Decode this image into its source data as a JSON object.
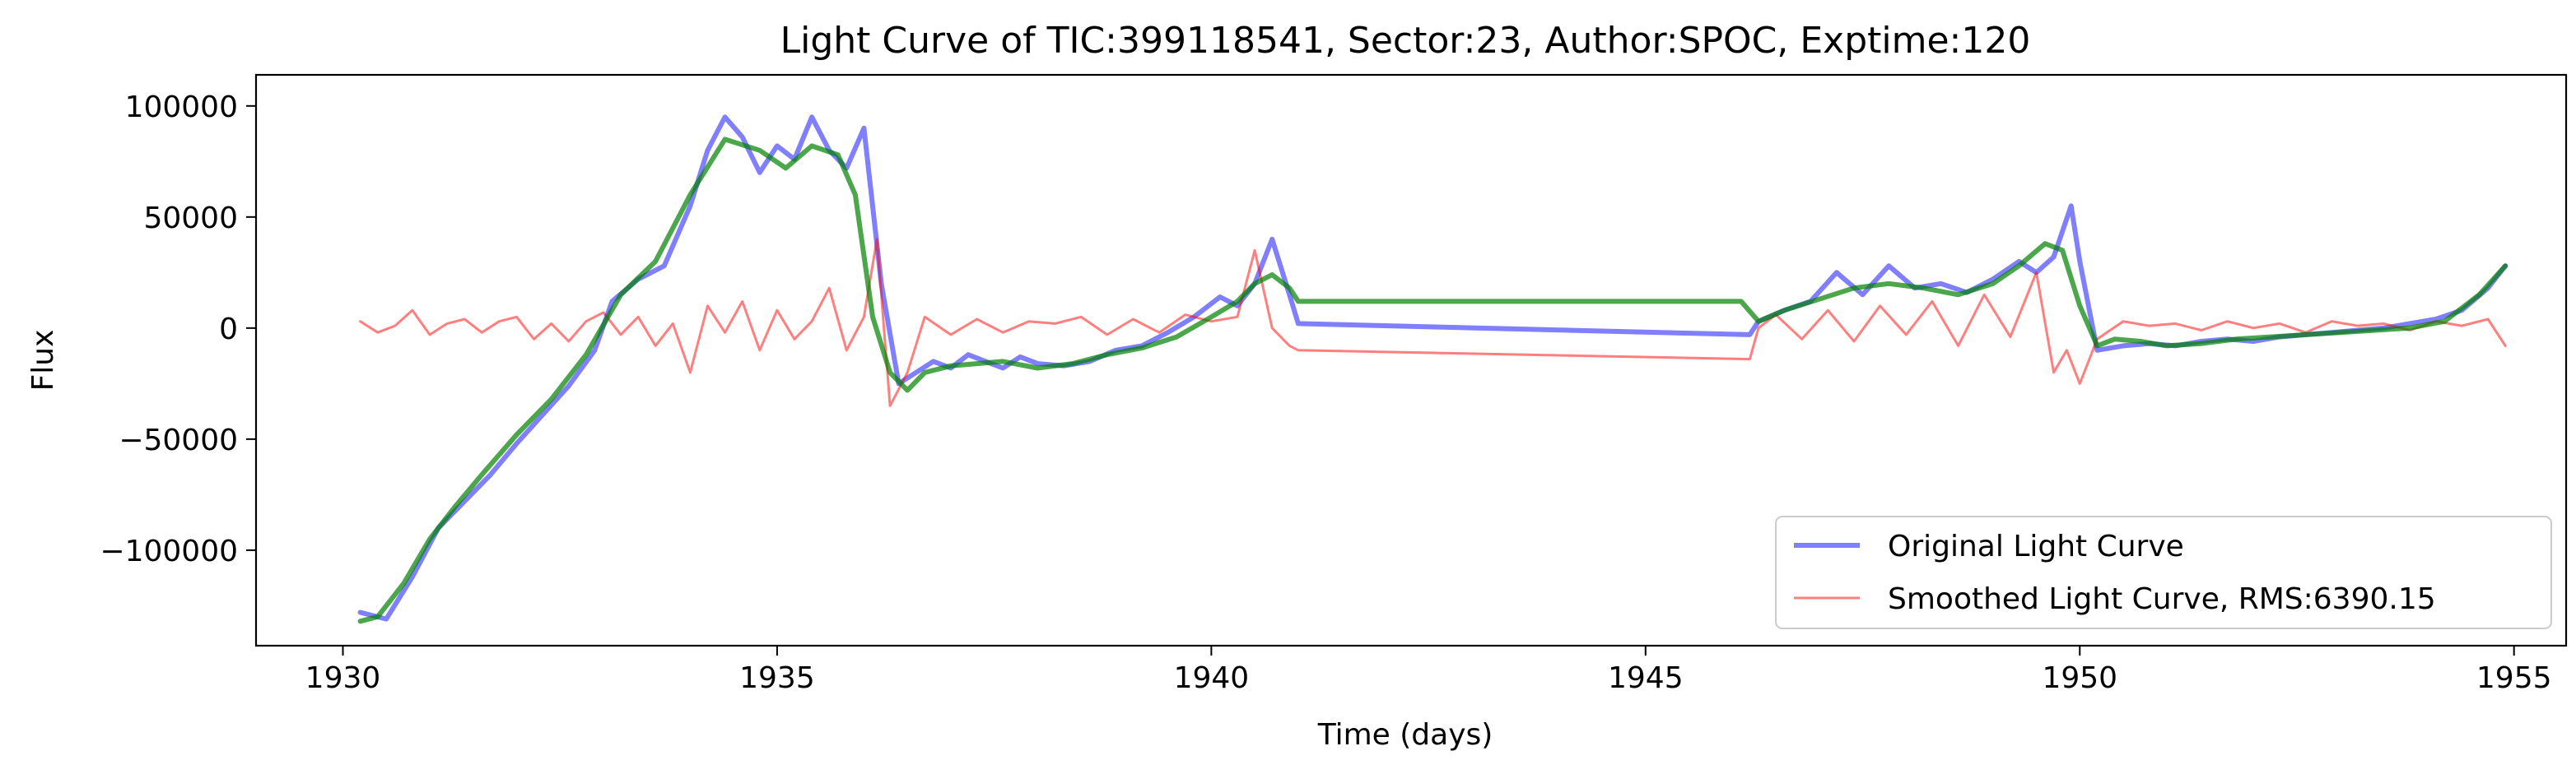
{
  "chart_data": {
    "type": "line",
    "title": "Light Curve of TIC:399118541, Sector:23, Author:SPOC, Exptime:120",
    "xlabel": "Time (days)",
    "ylabel": "Flux",
    "xlim": [
      1929.0,
      1955.6
    ],
    "ylim": [
      -143000,
      114000
    ],
    "xticks": [
      1930,
      1935,
      1940,
      1945,
      1950,
      1955
    ],
    "xtick_labels": [
      "1930",
      "1935",
      "1940",
      "1945",
      "1950",
      "1955"
    ],
    "yticks": [
      -100000,
      -50000,
      0,
      50000,
      100000
    ],
    "ytick_labels": [
      "−100000",
      "−50000",
      "0",
      "50000",
      "100000"
    ],
    "grid": false,
    "legend_position": "lower-right",
    "series": [
      {
        "name": "Original Light Curve",
        "color": "#0000ff",
        "opacity": 0.5,
        "x": [
          1930.2,
          1930.5,
          1930.8,
          1931.1,
          1931.4,
          1931.7,
          1932.0,
          1932.3,
          1932.6,
          1932.9,
          1933.1,
          1933.4,
          1933.7,
          1934.0,
          1934.2,
          1934.4,
          1934.6,
          1934.8,
          1935.0,
          1935.2,
          1935.4,
          1935.6,
          1935.8,
          1936.0,
          1936.2,
          1936.4,
          1936.6,
          1936.8,
          1937.0,
          1937.2,
          1937.4,
          1937.6,
          1937.8,
          1938.0,
          1938.3,
          1938.6,
          1938.9,
          1939.2,
          1939.5,
          1939.8,
          1940.1,
          1940.3,
          1940.5,
          1940.7,
          1940.9,
          1941.0,
          1946.2,
          1946.3,
          1946.6,
          1946.9,
          1947.2,
          1947.5,
          1947.8,
          1948.1,
          1948.4,
          1948.7,
          1949.0,
          1949.3,
          1949.5,
          1949.7,
          1949.9,
          1950.0,
          1950.2,
          1950.5,
          1950.8,
          1951.1,
          1951.4,
          1951.7,
          1952.0,
          1952.3,
          1952.6,
          1952.9,
          1953.2,
          1953.5,
          1953.8,
          1954.1,
          1954.4,
          1954.7,
          1954.9
        ],
        "y": [
          -128000,
          -131000,
          -112000,
          -90000,
          -78000,
          -66000,
          -52000,
          -39000,
          -26000,
          -10000,
          12000,
          22000,
          28000,
          55000,
          80000,
          95000,
          86000,
          70000,
          82000,
          76000,
          95000,
          80000,
          72000,
          90000,
          20000,
          -25000,
          -20000,
          -15000,
          -18000,
          -12000,
          -15000,
          -18000,
          -13000,
          -16000,
          -17000,
          -15000,
          -10000,
          -8000,
          -2000,
          5000,
          14000,
          10000,
          20000,
          40000,
          15000,
          2000,
          -3000,
          3000,
          8000,
          12000,
          25000,
          15000,
          28000,
          18000,
          20000,
          16000,
          22000,
          30000,
          25000,
          32000,
          55000,
          30000,
          -10000,
          -8000,
          -7000,
          -8000,
          -6000,
          -5000,
          -6000,
          -4000,
          -3000,
          -2000,
          -1000,
          0,
          2000,
          4000,
          8000,
          18000,
          28000
        ]
      },
      {
        "name": "Smoothed Light Curve, RMS:6390.15",
        "color": "#ff0000",
        "opacity": 0.5,
        "x": [
          1930.2,
          1930.4,
          1930.6,
          1930.8,
          1931.0,
          1931.2,
          1931.4,
          1931.6,
          1931.8,
          1932.0,
          1932.2,
          1932.4,
          1932.6,
          1932.8,
          1933.0,
          1933.2,
          1933.4,
          1933.6,
          1933.8,
          1934.0,
          1934.2,
          1934.4,
          1934.6,
          1934.8,
          1935.0,
          1935.2,
          1935.4,
          1935.6,
          1935.8,
          1936.0,
          1936.15,
          1936.3,
          1936.5,
          1936.7,
          1937.0,
          1937.3,
          1937.6,
          1937.9,
          1938.2,
          1938.5,
          1938.8,
          1939.1,
          1939.4,
          1939.7,
          1940.0,
          1940.3,
          1940.5,
          1940.7,
          1940.9,
          1941.0,
          1946.2,
          1946.3,
          1946.5,
          1946.8,
          1947.1,
          1947.4,
          1947.7,
          1948.0,
          1948.3,
          1948.6,
          1948.9,
          1949.2,
          1949.5,
          1949.7,
          1949.85,
          1950.0,
          1950.2,
          1950.5,
          1950.8,
          1951.1,
          1951.4,
          1951.7,
          1952.0,
          1952.3,
          1952.6,
          1952.9,
          1953.2,
          1953.5,
          1953.8,
          1954.1,
          1954.4,
          1954.7,
          1954.9
        ],
        "y": [
          3000,
          -2000,
          1000,
          8000,
          -3000,
          2000,
          4000,
          -2000,
          3000,
          5000,
          -5000,
          2000,
          -6000,
          3000,
          7000,
          -3000,
          5000,
          -8000,
          2000,
          -20000,
          10000,
          -2000,
          12000,
          -10000,
          8000,
          -5000,
          3000,
          18000,
          -10000,
          5000,
          40000,
          -35000,
          -20000,
          5000,
          -3000,
          4000,
          -2000,
          3000,
          2000,
          5000,
          -3000,
          4000,
          -2000,
          6000,
          3000,
          5000,
          35000,
          0,
          -8000,
          -10000,
          -14000,
          0,
          6000,
          -5000,
          8000,
          -6000,
          10000,
          -3000,
          12000,
          -8000,
          15000,
          -4000,
          25000,
          -20000,
          -10000,
          -25000,
          -5000,
          3000,
          1000,
          2000,
          -1000,
          3000,
          0,
          2000,
          -2000,
          3000,
          1000,
          2000,
          -1000,
          3000,
          1000,
          4000,
          -8000
        ]
      },
      {
        "name": "",
        "color": "#008000",
        "opacity": 0.7,
        "x": [
          1930.2,
          1930.4,
          1930.7,
          1931.0,
          1931.3,
          1931.6,
          1932.0,
          1932.4,
          1932.8,
          1933.2,
          1933.6,
          1934.0,
          1934.4,
          1934.8,
          1935.1,
          1935.4,
          1935.7,
          1935.9,
          1936.1,
          1936.3,
          1936.5,
          1936.7,
          1937.0,
          1937.3,
          1937.6,
          1938.0,
          1938.4,
          1938.8,
          1939.2,
          1939.6,
          1940.0,
          1940.3,
          1940.5,
          1940.7,
          1940.9,
          1941.0,
          1946.1,
          1946.3,
          1946.6,
          1947.0,
          1947.4,
          1947.8,
          1948.2,
          1948.6,
          1949.0,
          1949.3,
          1949.6,
          1949.8,
          1950.0,
          1950.2,
          1950.4,
          1950.7,
          1951.0,
          1951.4,
          1951.8,
          1952.2,
          1952.6,
          1953.0,
          1953.4,
          1953.8,
          1954.2,
          1954.6,
          1954.9
        ],
        "y": [
          -132000,
          -130000,
          -115000,
          -95000,
          -80000,
          -66000,
          -48000,
          -32000,
          -12000,
          15000,
          30000,
          60000,
          85000,
          80000,
          72000,
          82000,
          78000,
          60000,
          5000,
          -20000,
          -28000,
          -20000,
          -17000,
          -16000,
          -15000,
          -18000,
          -16000,
          -12000,
          -9000,
          -4000,
          5000,
          12000,
          20000,
          24000,
          18000,
          12000,
          12000,
          3000,
          8000,
          13000,
          18000,
          20000,
          18000,
          15000,
          20000,
          28000,
          38000,
          35000,
          10000,
          -8000,
          -5000,
          -6000,
          -8000,
          -7000,
          -5000,
          -4000,
          -3000,
          -2000,
          -1000,
          0,
          3000,
          15000,
          28000
        ]
      }
    ]
  }
}
